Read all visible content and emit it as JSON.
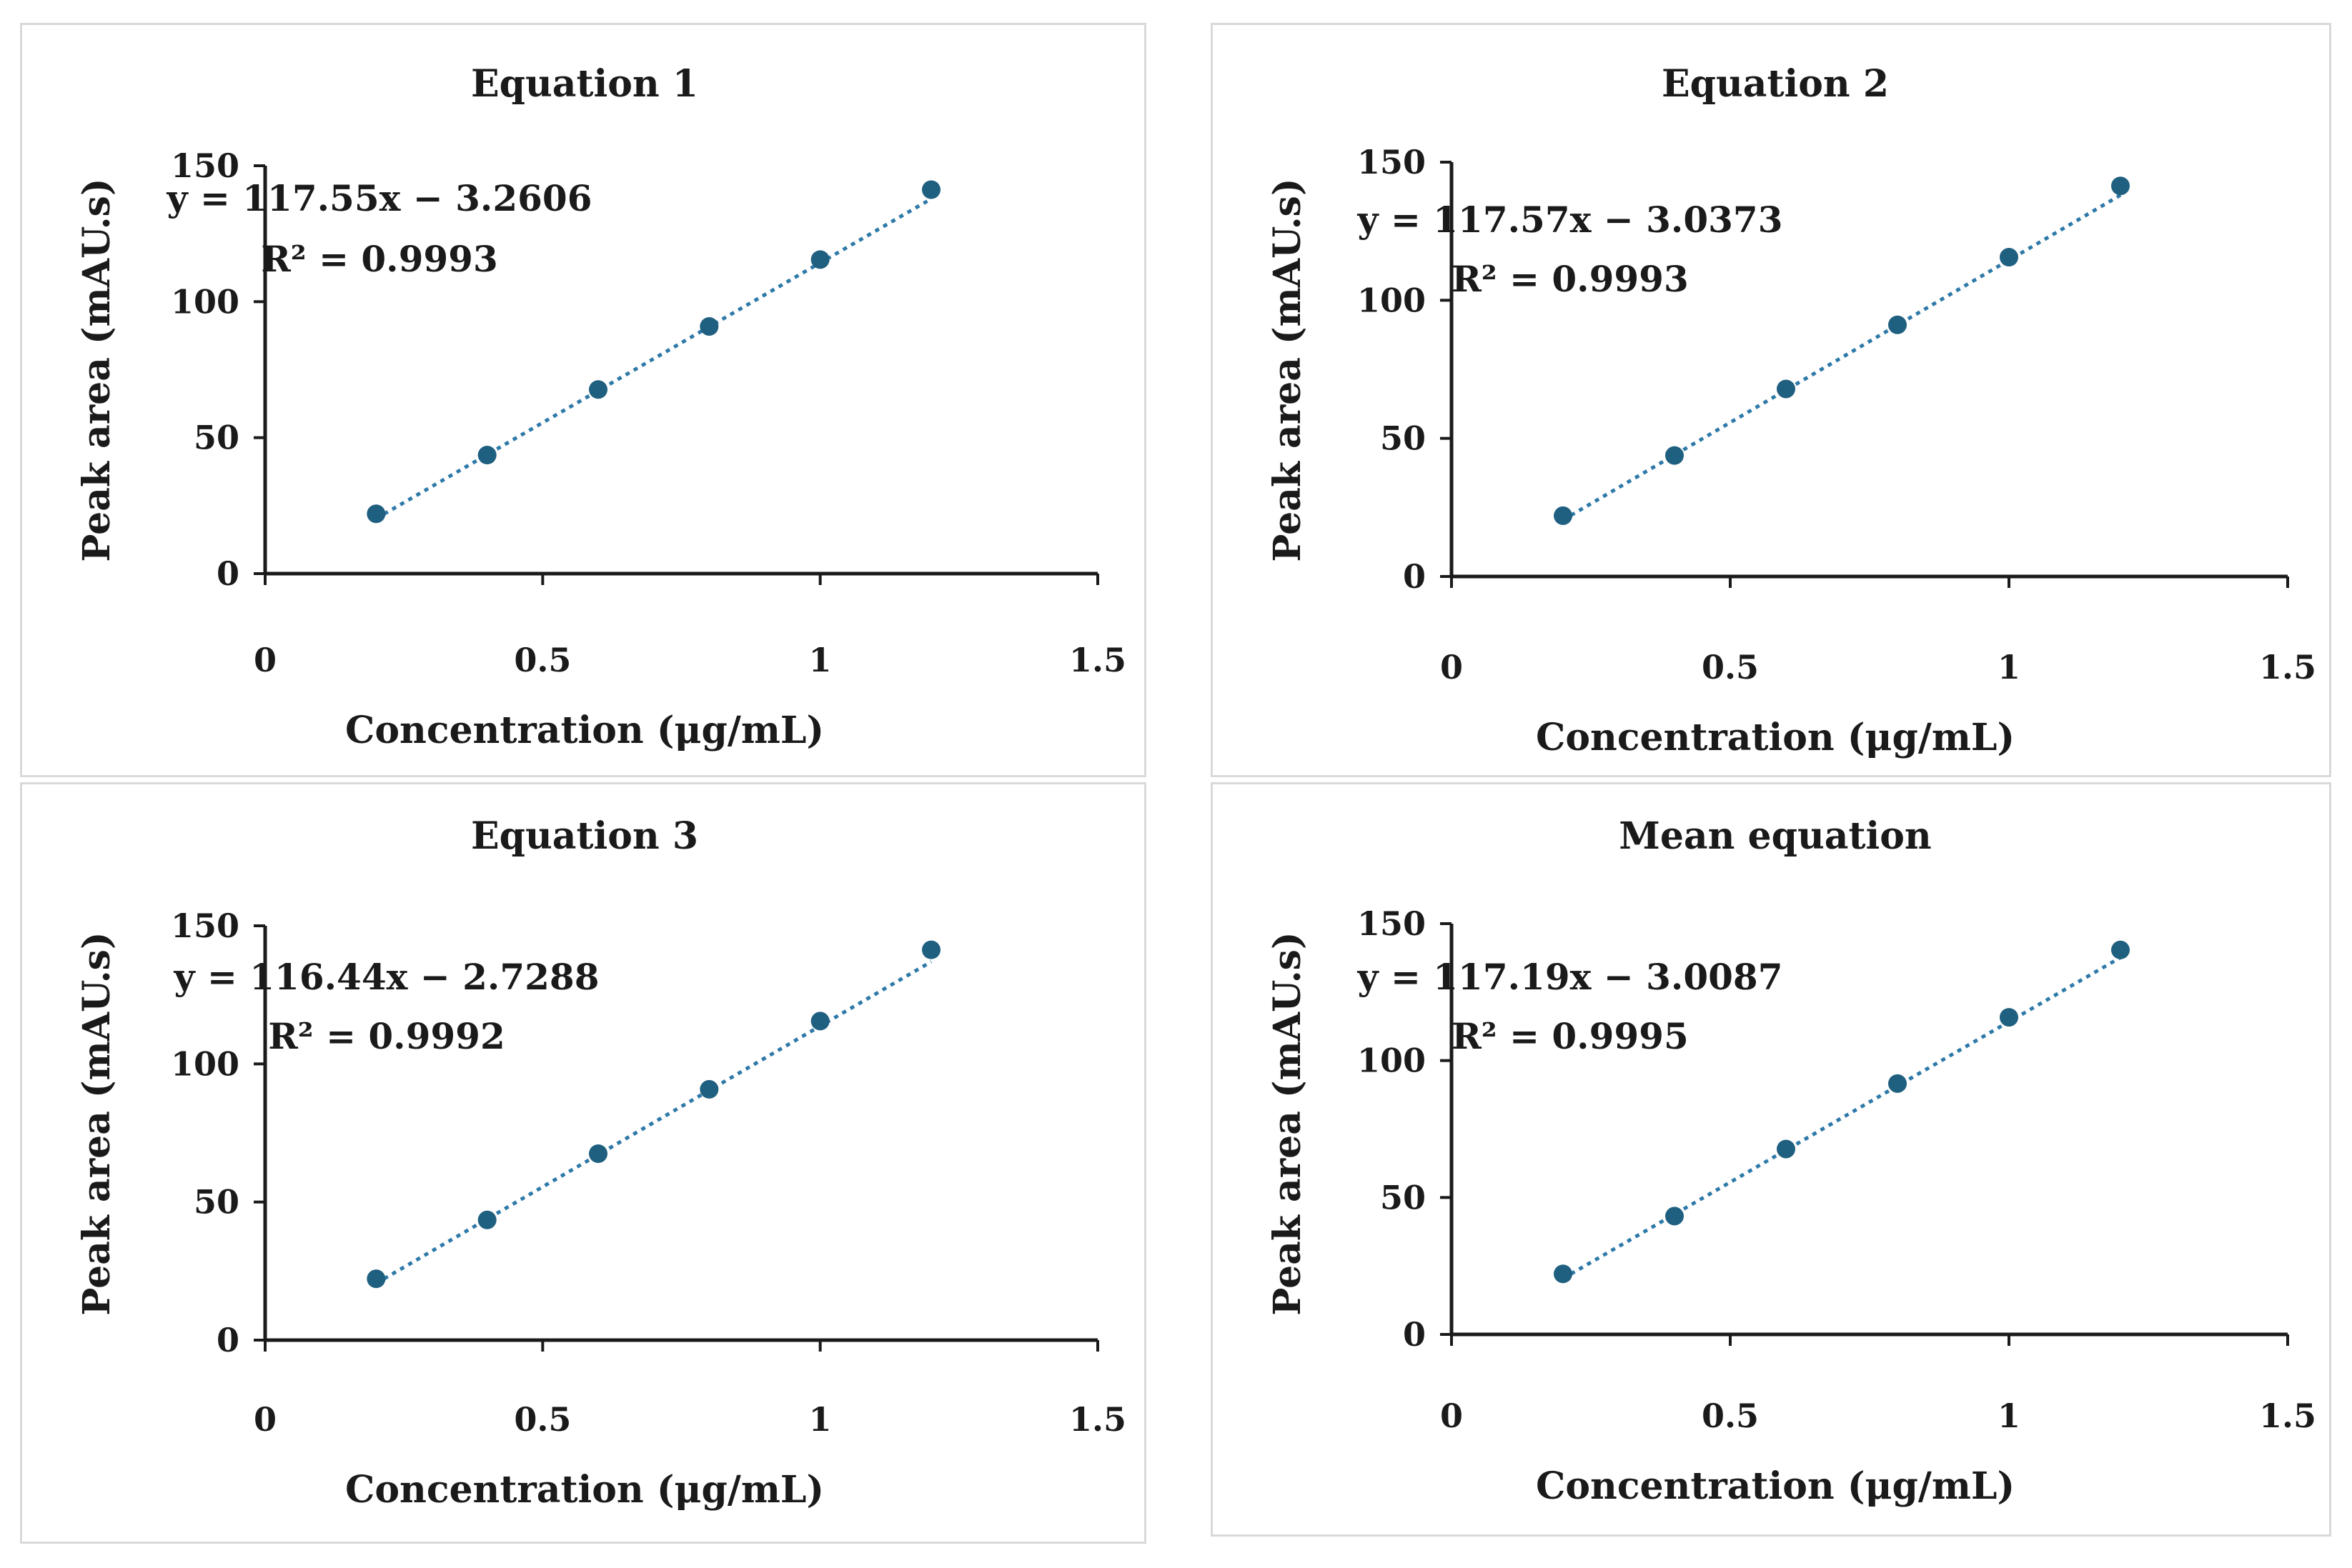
{
  "style": {
    "marker_color": "#1f5f7f",
    "trendline_color": "#2e79a8",
    "axis_color": "#1a1a1a",
    "border_color": "#d9d9d9"
  },
  "chart_data": [
    {
      "type": "scatter",
      "title": "Equation 1",
      "xlabel": "Concentration (μg/mL)",
      "ylabel": "Peak area (mAU.s)",
      "xlim": [
        0,
        1.5
      ],
      "ylim": [
        0,
        150
      ],
      "xticks": [
        "0",
        "0.5",
        "1",
        "1.5"
      ],
      "yticks": [
        "0",
        "50",
        "100",
        "150"
      ],
      "x": [
        0.2,
        0.4,
        0.6,
        0.8,
        1.0,
        1.2
      ],
      "y": [
        22,
        43.6,
        67.7,
        90.9,
        115.5,
        141.2
      ],
      "trendline": {
        "slope": 117.55,
        "intercept": -3.2606
      },
      "equation": "y = 117.55x − 3.2606",
      "r2": "R² = 0.9993"
    },
    {
      "type": "scatter",
      "title": "Equation 2",
      "xlabel": "Concentration (μg/mL)",
      "ylabel": "Peak area (mAU.s)",
      "xlim": [
        0,
        1.5
      ],
      "ylim": [
        0,
        150
      ],
      "xticks": [
        "0",
        "0.5",
        "1",
        "1.5"
      ],
      "yticks": [
        "0",
        "50",
        "100",
        "150"
      ],
      "x": [
        0.2,
        0.4,
        0.6,
        0.8,
        1.0,
        1.2
      ],
      "y": [
        22,
        43.8,
        67.9,
        91.1,
        115.6,
        141.4
      ],
      "trendline": {
        "slope": 117.57,
        "intercept": -3.0373
      },
      "equation": "y = 117.57x − 3.0373",
      "r2": "R² = 0.9993"
    },
    {
      "type": "scatter",
      "title": "Equation 3",
      "xlabel": "Concentration (μg/mL)",
      "ylabel": "Peak area (mAU.s)",
      "xlim": [
        0,
        1.5
      ],
      "ylim": [
        0,
        150
      ],
      "xticks": [
        "0",
        "0.5",
        "1",
        "1.5"
      ],
      "yticks": [
        "0",
        "50",
        "100",
        "150"
      ],
      "x": [
        0.2,
        0.4,
        0.6,
        0.8,
        1.0,
        1.2
      ],
      "y": [
        22.2,
        43.5,
        67.5,
        90.8,
        115.5,
        141.3
      ],
      "trendline": {
        "slope": 116.44,
        "intercept": -2.7288
      },
      "equation": "y = 116.44x − 2.7288",
      "r2": "R² = 0.9992"
    },
    {
      "type": "scatter",
      "title": "Mean equation",
      "xlabel": "Concentration (μg/mL)",
      "ylabel": "Peak area (mAU.s)",
      "xlim": [
        0,
        1.5
      ],
      "ylim": [
        0,
        150
      ],
      "xticks": [
        "0",
        "0.5",
        "1",
        "1.5"
      ],
      "yticks": [
        "0",
        "50",
        "100",
        "150"
      ],
      "x": [
        0.2,
        0.4,
        0.6,
        0.8,
        1.0,
        1.2
      ],
      "y": [
        22.1,
        43.2,
        67.7,
        91.6,
        115.8,
        140.4
      ],
      "trendline": {
        "slope": 117.19,
        "intercept": -3.0087
      },
      "equation": "y = 117.19x − 3.0087",
      "r2": "R² = 0.9995"
    }
  ]
}
